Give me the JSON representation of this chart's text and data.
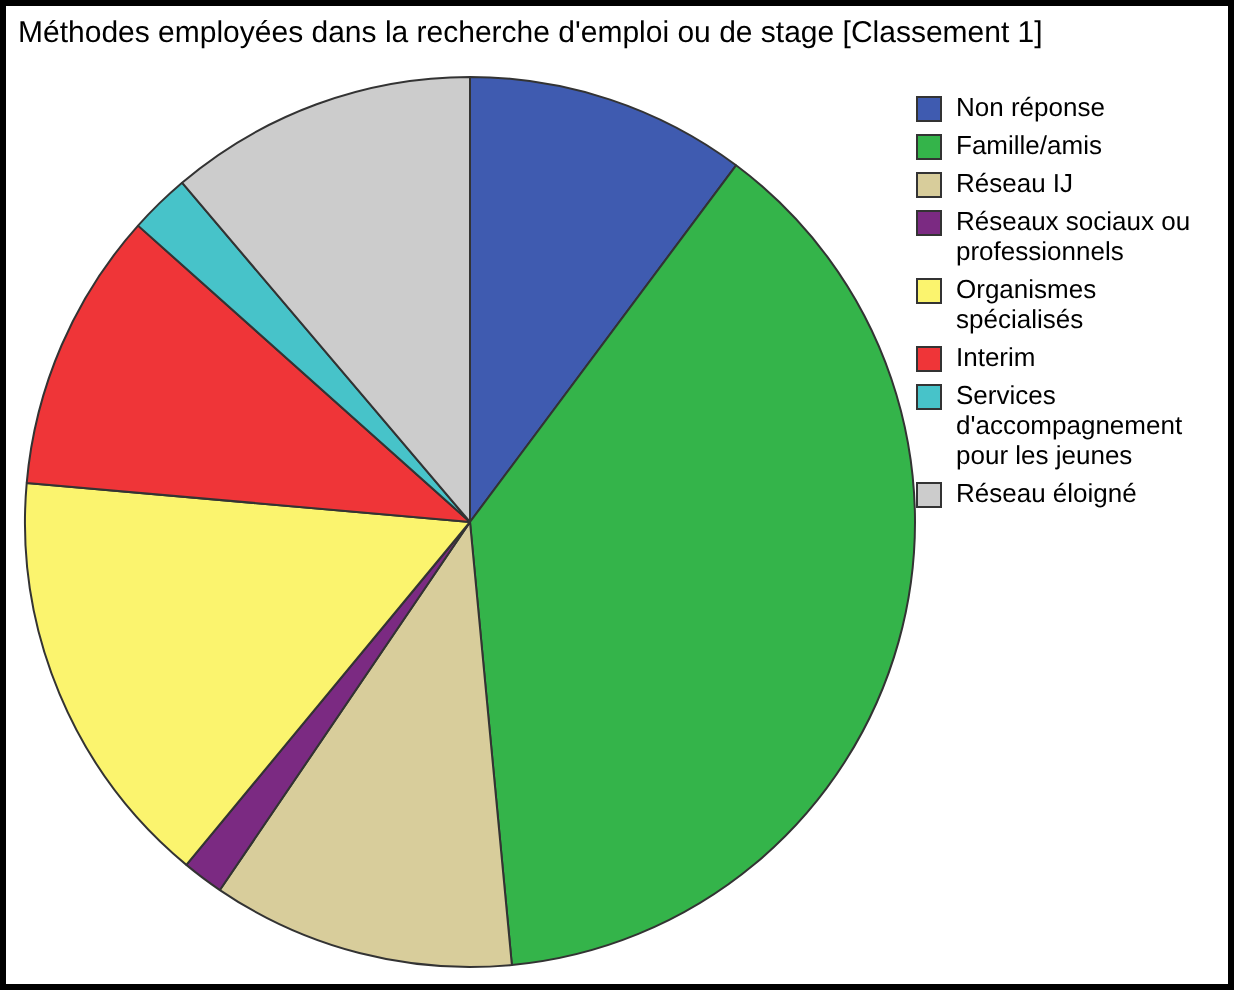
{
  "chart_data": {
    "type": "pie",
    "title": "Méthodes employées dans la recherche d'emploi ou de stage [Classement 1]",
    "categories": [
      "Non réponse",
      "Famille/amis",
      "Réseau IJ",
      "Réseaux sociaux ou professionnels",
      "Organismes spécialisés",
      "Interim",
      "Services d'accompagnement pour les jeunes",
      "Réseau éloigné"
    ],
    "values": [
      10.2,
      38.3,
      11,
      1.5,
      15.4,
      10.2,
      2.2,
      11.2
    ],
    "colors": [
      "#3f5bb0",
      "#34b44a",
      "#d8cd9b",
      "#7b2a82",
      "#fbf46e",
      "#ef3538",
      "#47c3c9",
      "#cccccc"
    ],
    "legend": "top right"
  }
}
